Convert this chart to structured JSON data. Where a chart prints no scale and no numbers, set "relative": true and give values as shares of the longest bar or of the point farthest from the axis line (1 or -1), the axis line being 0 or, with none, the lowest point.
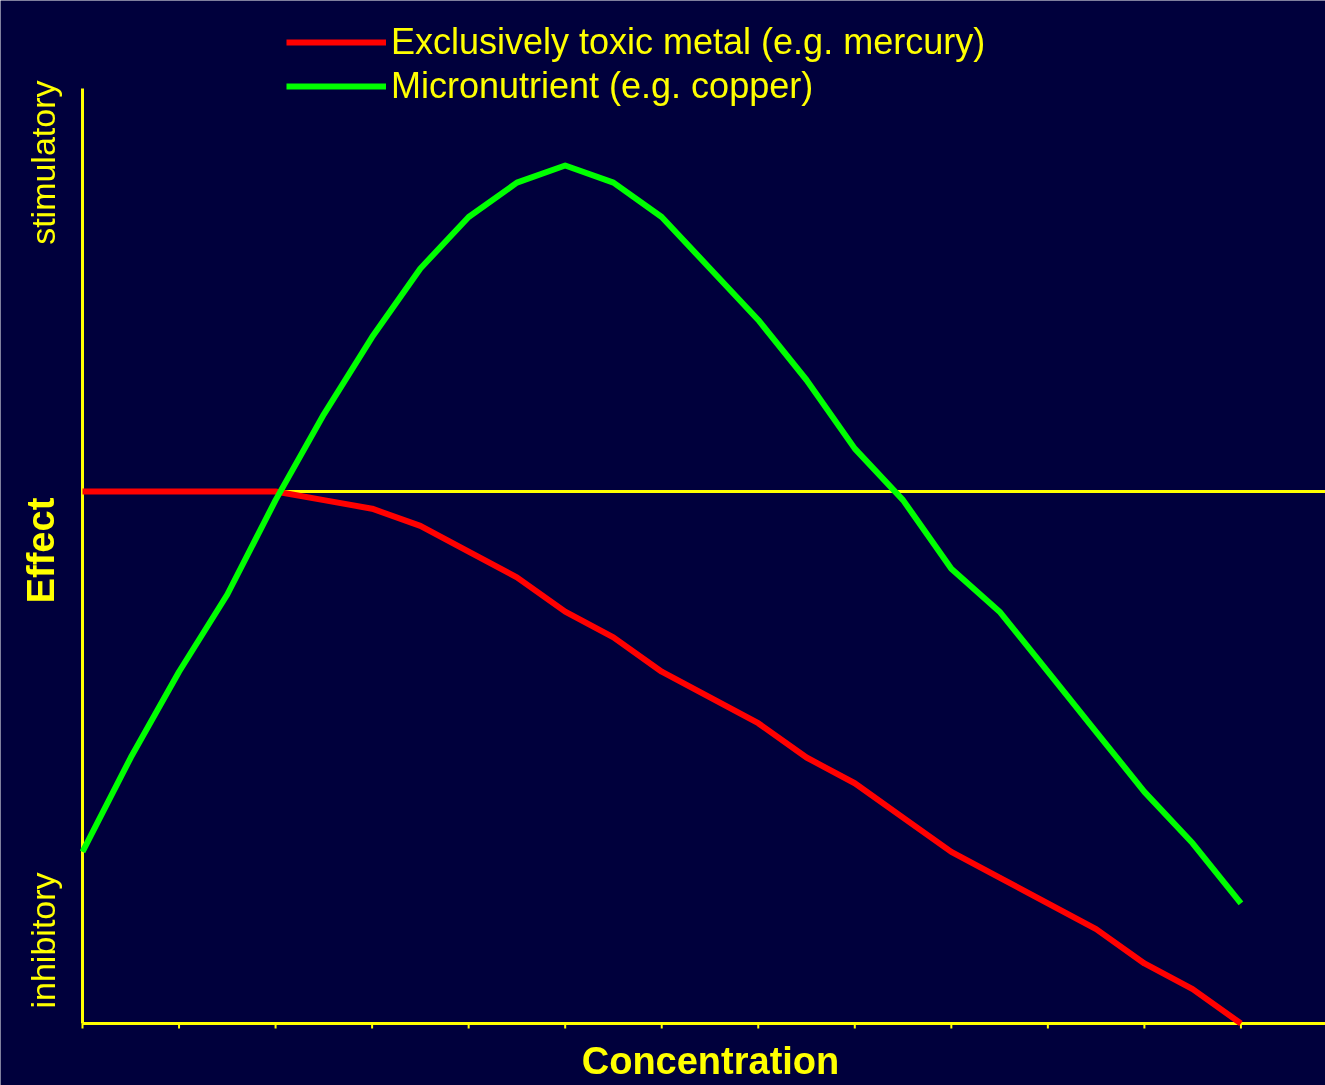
{
  "chart_data": {
    "type": "line",
    "relative": true,
    "xlabel": "Concentration",
    "ylabel": "Effect",
    "annotations": [
      "stimulatory",
      "inhibitory"
    ],
    "categories": [
      null,
      null,
      null,
      null,
      null,
      null,
      null,
      null,
      null,
      null,
      null,
      null,
      null,
      null,
      null,
      null,
      null,
      null,
      null,
      null,
      null,
      null,
      null,
      null,
      null
    ],
    "series": [
      {
        "name": "Exclusively toxic metal (e.g. mercury)",
        "color": "#ff0000",
        "values": [
          0.62,
          0.62,
          0.62,
          0.62,
          0.62,
          0.61,
          0.6,
          0.58,
          0.55,
          0.52,
          0.48,
          0.45,
          0.41,
          0.38,
          0.35,
          0.31,
          0.28,
          0.24,
          0.2,
          0.17,
          0.14,
          0.11,
          0.07,
          0.04,
          0.0
        ]
      },
      {
        "name": "Micronutrient (e.g. copper)",
        "color": "#00ff00",
        "values": [
          0.2,
          0.31,
          0.41,
          0.5,
          0.61,
          0.71,
          0.8,
          0.88,
          0.94,
          0.98,
          1.0,
          0.98,
          0.94,
          0.88,
          0.82,
          0.75,
          0.67,
          0.61,
          0.53,
          0.48,
          0.41,
          0.34,
          0.27,
          0.21,
          0.14
        ]
      }
    ],
    "ref_lines": [
      {
        "axis": "y",
        "value": 0.62,
        "color": "#ffff00"
      }
    ],
    "legend": "top",
    "grid": false,
    "marker": "none",
    "line_style": "solid"
  }
}
